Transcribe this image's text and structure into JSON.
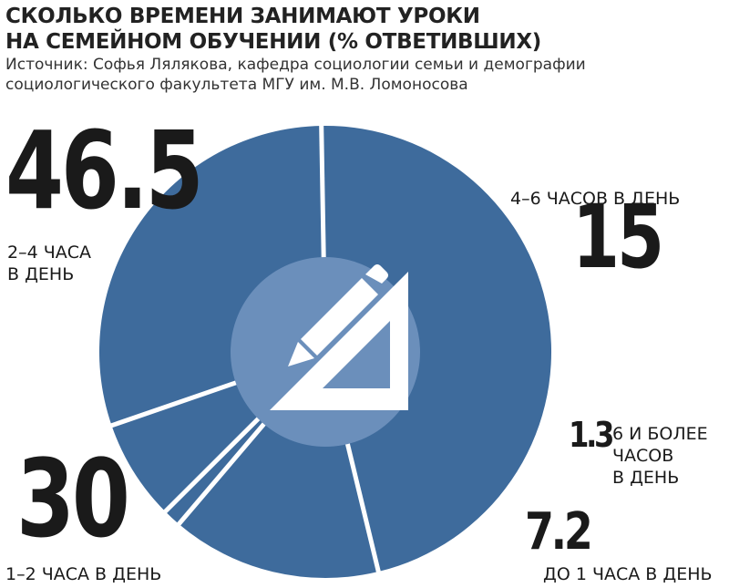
{
  "header": {
    "title": "СКОЛЬКО ВРЕМЕНИ ЗАНИМАЮТ УРОКИ\nНА СЕМЕЙНОМ ОБУЧЕНИИ (% ОТВЕТИВШИХ)",
    "source": "Источник: Софья Лялякова, кафедра социологии семьи и демографии\nсоциологического факультета МГУ им. М.В. Ломоносова"
  },
  "colors": {
    "ring": "#3e6b9c",
    "center": "#6b8fbb",
    "icon": "#ffffff",
    "background": "#ffffff"
  },
  "center_icon": "pencil-and-triangle-ruler-icon",
  "chart_data": {
    "type": "pie",
    "variant": "donut",
    "slices": [
      {
        "value": 46.5,
        "value_label": "46.5",
        "label": "2–4 ЧАСА\nВ ДЕНЬ"
      },
      {
        "value": 15,
        "value_label": "15",
        "label": "4–6 ЧАСОВ В ДЕНЬ"
      },
      {
        "value": 1.3,
        "value_label": "1.3",
        "label": "6 И БОЛЕЕ\nЧАСОВ\nВ ДЕНЬ"
      },
      {
        "value": 7.2,
        "value_label": "7.2",
        "label": "ДО 1 ЧАСА В ДЕНЬ"
      },
      {
        "value": 30,
        "value_label": "30",
        "label": "1–2 ЧАСА В ДЕНЬ"
      }
    ]
  }
}
